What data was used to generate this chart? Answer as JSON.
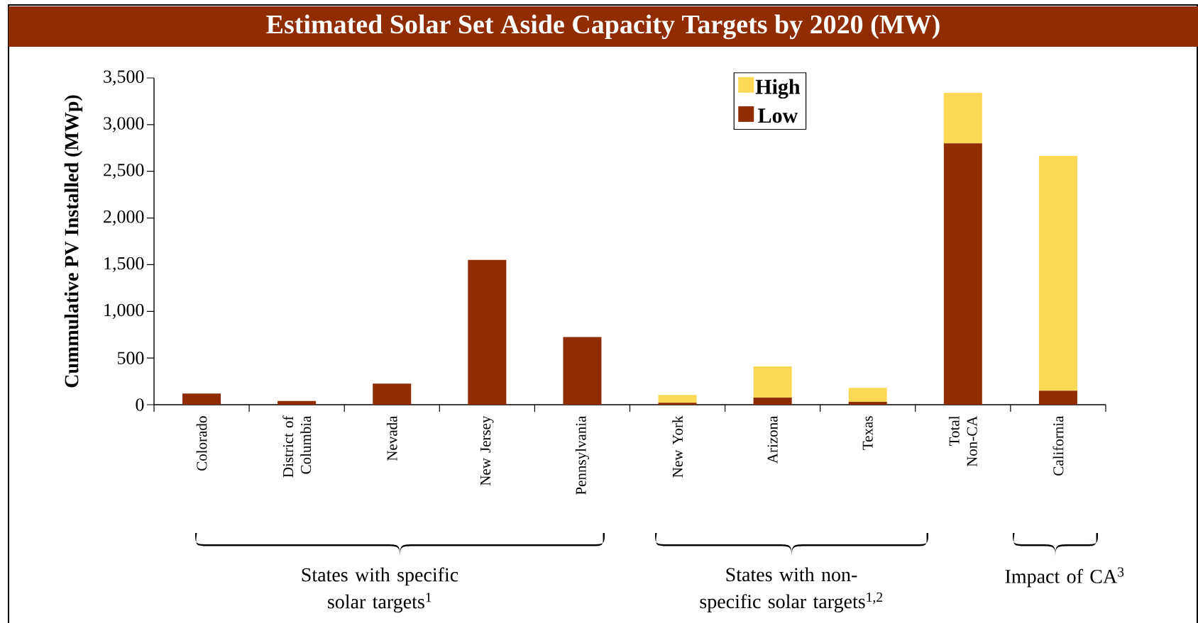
{
  "chart_data": {
    "type": "bar",
    "stacked": true,
    "title": "Estimated Solar Set Aside Capacity Targets by 2020 (MW)",
    "ylabel": "Cummulative PV Installed (MWp)",
    "categories": [
      "Colorado",
      "District of Columbia",
      "Nevada",
      "New Jersey",
      "Pennsylvania",
      "New York",
      "Arizona",
      "Texas",
      "Total Non-CA",
      "California"
    ],
    "series": [
      {
        "name": "Low",
        "color": "#8f2d00",
        "values": [
          120,
          40,
          225,
          1550,
          725,
          20,
          75,
          30,
          2800,
          150
        ]
      },
      {
        "name": "High",
        "color": "#fcd955",
        "values": [
          0,
          0,
          0,
          0,
          0,
          85,
          335,
          150,
          540,
          2515
        ]
      }
    ],
    "ylim": [
      0,
      3500
    ],
    "yticks": [
      {
        "value": 0,
        "label": "0"
      },
      {
        "value": 500,
        "label": "500"
      },
      {
        "value": 1000,
        "label": "1,000"
      },
      {
        "value": 1500,
        "label": "1,500"
      },
      {
        "value": 2000,
        "label": "2,000"
      },
      {
        "value": 2500,
        "label": "2,500"
      },
      {
        "value": 3000,
        "label": "3,000"
      },
      {
        "value": 3500,
        "label": "3,500"
      }
    ],
    "legend": "top",
    "annotations": [
      "States with specific solar targets$^{1}$",
      "States with non-specific solar targets$^{1,2}$",
      "Impact of CA$^{3}$"
    ]
  }
}
